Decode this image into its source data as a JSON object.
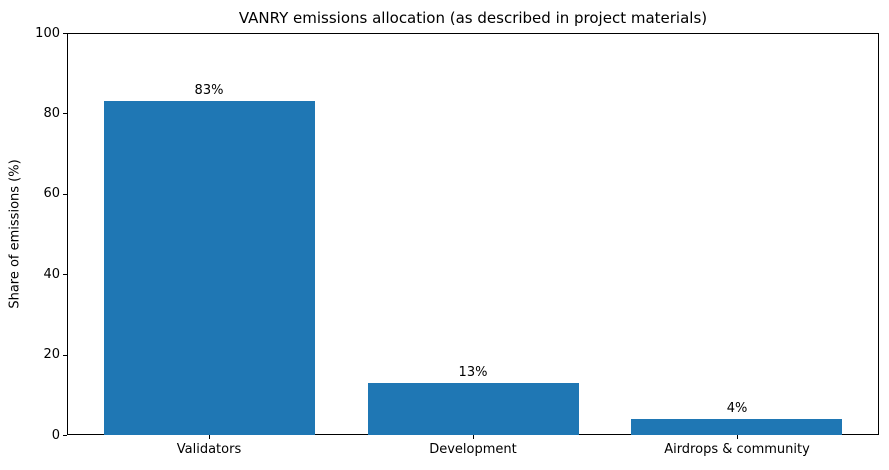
{
  "chart_data": {
    "type": "bar",
    "title": "VANRY emissions allocation (as described in project materials)",
    "xlabel": "",
    "ylabel": "Share of emissions (%)",
    "categories": [
      "Validators",
      "Development",
      "Airdrops & community"
    ],
    "values": [
      83,
      13,
      4
    ],
    "value_labels": [
      "83%",
      "13%",
      "4%"
    ],
    "ylim": [
      0,
      100
    ],
    "yticks": [
      0,
      20,
      40,
      60,
      80,
      100
    ],
    "bar_color": "#1f77b4",
    "bar_width_fraction": 0.8,
    "grid": false,
    "legend": "none",
    "frame": true,
    "background": "#ffffff"
  }
}
